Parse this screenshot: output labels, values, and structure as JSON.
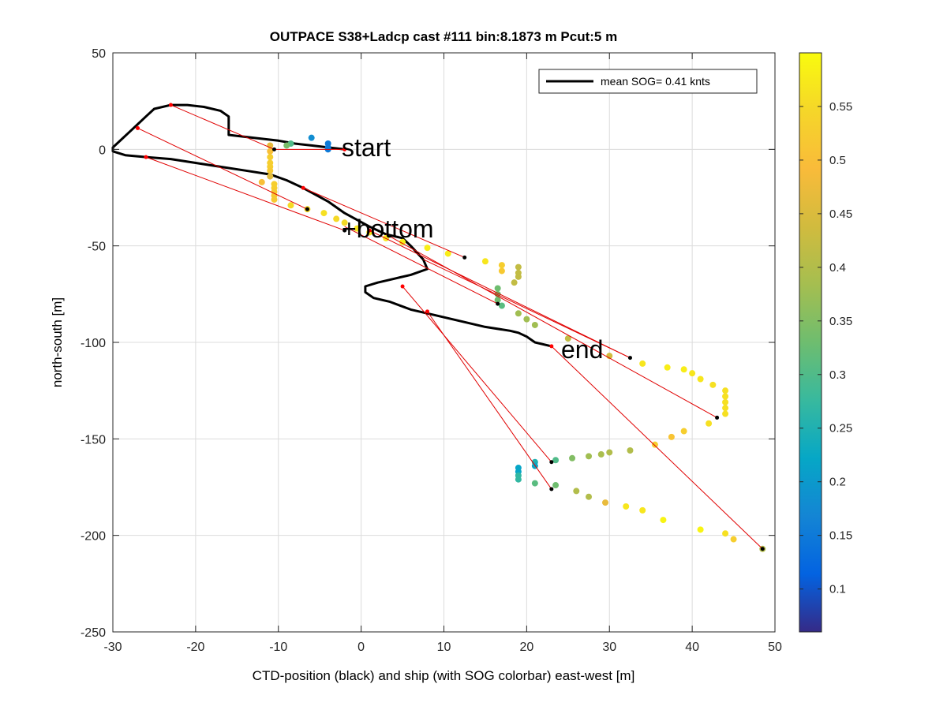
{
  "chart_data": {
    "type": "scatter",
    "title": "OUTPACE S38+Ladcp cast #111 bin:8.1873 m  Pcut:5 m",
    "xlabel": "CTD-position (black) and ship (with SOG colorbar) east-west [m]",
    "ylabel": "north-south [m]",
    "xlim": [
      -30,
      50
    ],
    "ylim": [
      -250,
      50
    ],
    "xticks": [
      -30,
      -20,
      -10,
      0,
      10,
      20,
      30,
      40,
      50
    ],
    "yticks": [
      -250,
      -200,
      -150,
      -100,
      -50,
      0,
      50
    ],
    "grid": true,
    "legend": {
      "placement": "top-right",
      "entry": "mean SOG=  0.41 knts"
    },
    "annotations": [
      {
        "text": "start",
        "x": -2,
        "y": 0
      },
      {
        "text": "+bottom",
        "x": -1.5,
        "y": -42
      },
      {
        "text": "end",
        "x": 24.5,
        "y": -104
      }
    ],
    "colorbar": {
      "range": [
        0.06,
        0.6
      ],
      "ticks": [
        0.1,
        0.15,
        0.2,
        0.25,
        0.3,
        0.35,
        0.4,
        0.45,
        0.5,
        0.55
      ]
    },
    "ctd_track": [
      [
        -2,
        0
      ],
      [
        -4,
        1
      ],
      [
        -6,
        2
      ],
      [
        -8,
        3
      ],
      [
        -10,
        4.5
      ],
      [
        -12,
        5.5
      ],
      [
        -15,
        7
      ],
      [
        -16,
        7.5
      ],
      [
        -16,
        10
      ],
      [
        -16,
        13
      ],
      [
        -16,
        17
      ],
      [
        -17,
        20
      ],
      [
        -19,
        22
      ],
      [
        -21,
        23
      ],
      [
        -23,
        23
      ],
      [
        -25,
        21
      ],
      [
        -26,
        17
      ],
      [
        -27,
        13
      ],
      [
        -28,
        9
      ],
      [
        -29,
        5
      ],
      [
        -30,
        1
      ],
      [
        -30,
        -1
      ],
      [
        -28.5,
        -3
      ],
      [
        -26,
        -4
      ],
      [
        -23,
        -5
      ],
      [
        -20,
        -7
      ],
      [
        -17,
        -9
      ],
      [
        -14,
        -11
      ],
      [
        -11,
        -13
      ],
      [
        -9,
        -16
      ],
      [
        -7,
        -20
      ],
      [
        -4,
        -27
      ],
      [
        -2,
        -33
      ],
      [
        1,
        -40
      ],
      [
        3,
        -44
      ],
      [
        5,
        -46
      ],
      [
        6,
        -50
      ],
      [
        7.5,
        -57
      ],
      [
        8,
        -62
      ],
      [
        6,
        -65
      ],
      [
        4,
        -67
      ],
      [
        2,
        -69
      ],
      [
        0.5,
        -71
      ],
      [
        0.5,
        -74
      ],
      [
        1.5,
        -77
      ],
      [
        3.5,
        -79
      ],
      [
        6,
        -83
      ],
      [
        9,
        -86
      ],
      [
        12,
        -89
      ],
      [
        15,
        -92
      ],
      [
        18,
        -94
      ],
      [
        19,
        -95
      ],
      [
        20,
        -97
      ],
      [
        21,
        -100
      ],
      [
        23,
        -102
      ]
    ],
    "ship_points": [
      {
        "x": -6,
        "y": 6,
        "sog": 0.18
      },
      {
        "x": -4,
        "y": 3,
        "sog": 0.15
      },
      {
        "x": -4,
        "y": 1,
        "sog": 0.15
      },
      {
        "x": -4,
        "y": 0,
        "sog": 0.15
      },
      {
        "x": -8.5,
        "y": 3,
        "sog": 0.3
      },
      {
        "x": -9,
        "y": 2,
        "sog": 0.34
      },
      {
        "x": -11,
        "y": 2,
        "sog": 0.47
      },
      {
        "x": -11,
        "y": -1,
        "sog": 0.5
      },
      {
        "x": -11,
        "y": -4,
        "sog": 0.53
      },
      {
        "x": -11,
        "y": -7,
        "sog": 0.53
      },
      {
        "x": -11,
        "y": -9,
        "sog": 0.53
      },
      {
        "x": -11,
        "y": -11,
        "sog": 0.52
      },
      {
        "x": -11,
        "y": -14,
        "sog": 0.46
      },
      {
        "x": -10.5,
        "y": -18,
        "sog": 0.53
      },
      {
        "x": -10.5,
        "y": -20,
        "sog": 0.53
      },
      {
        "x": -10.5,
        "y": -22,
        "sog": 0.52
      },
      {
        "x": -10.5,
        "y": -24,
        "sog": 0.52
      },
      {
        "x": -10.5,
        "y": -26,
        "sog": 0.52
      },
      {
        "x": -12,
        "y": -17,
        "sog": 0.5
      },
      {
        "x": -8.5,
        "y": -29,
        "sog": 0.55
      },
      {
        "x": -6.5,
        "y": -31,
        "sog": 0.55
      },
      {
        "x": -4.5,
        "y": -33,
        "sog": 0.56
      },
      {
        "x": -3,
        "y": -36,
        "sog": 0.55
      },
      {
        "x": -2,
        "y": -38,
        "sog": 0.55
      },
      {
        "x": -0.5,
        "y": -41,
        "sog": 0.57
      },
      {
        "x": 1,
        "y": -43,
        "sog": 0.57
      },
      {
        "x": 3,
        "y": -46,
        "sog": 0.57
      },
      {
        "x": 5,
        "y": -48,
        "sog": 0.58
      },
      {
        "x": 8,
        "y": -51,
        "sog": 0.58
      },
      {
        "x": 10.5,
        "y": -54,
        "sog": 0.58
      },
      {
        "x": 15,
        "y": -58,
        "sog": 0.57
      },
      {
        "x": 17,
        "y": -60,
        "sog": 0.53
      },
      {
        "x": 17,
        "y": -63,
        "sog": 0.52
      },
      {
        "x": 19,
        "y": -61,
        "sog": 0.42
      },
      {
        "x": 19,
        "y": -64,
        "sog": 0.42
      },
      {
        "x": 19,
        "y": -66,
        "sog": 0.42
      },
      {
        "x": 18.5,
        "y": -69,
        "sog": 0.42
      },
      {
        "x": 16.5,
        "y": -72,
        "sog": 0.33
      },
      {
        "x": 16.5,
        "y": -75,
        "sog": 0.33
      },
      {
        "x": 16.5,
        "y": -78,
        "sog": 0.33
      },
      {
        "x": 17,
        "y": -81,
        "sog": 0.31
      },
      {
        "x": 19,
        "y": -85,
        "sog": 0.38
      },
      {
        "x": 20,
        "y": -88,
        "sog": 0.38
      },
      {
        "x": 21,
        "y": -91,
        "sog": 0.38
      },
      {
        "x": 25,
        "y": -98,
        "sog": 0.42
      },
      {
        "x": 30,
        "y": -107,
        "sog": 0.44
      },
      {
        "x": 34,
        "y": -111,
        "sog": 0.57
      },
      {
        "x": 37,
        "y": -113,
        "sog": 0.58
      },
      {
        "x": 39,
        "y": -114,
        "sog": 0.58
      },
      {
        "x": 40,
        "y": -116,
        "sog": 0.57
      },
      {
        "x": 41,
        "y": -119,
        "sog": 0.57
      },
      {
        "x": 42.5,
        "y": -122,
        "sog": 0.56
      },
      {
        "x": 44,
        "y": -125,
        "sog": 0.56
      },
      {
        "x": 44,
        "y": -128,
        "sog": 0.56
      },
      {
        "x": 44,
        "y": -131,
        "sog": 0.56
      },
      {
        "x": 44,
        "y": -134,
        "sog": 0.56
      },
      {
        "x": 44,
        "y": -137,
        "sog": 0.56
      },
      {
        "x": 42,
        "y": -142,
        "sog": 0.56
      },
      {
        "x": 39,
        "y": -146,
        "sog": 0.53
      },
      {
        "x": 37.5,
        "y": -149,
        "sog": 0.51
      },
      {
        "x": 35.5,
        "y": -153,
        "sog": 0.53
      },
      {
        "x": 32.5,
        "y": -156,
        "sog": 0.4
      },
      {
        "x": 30,
        "y": -157,
        "sog": 0.4
      },
      {
        "x": 29,
        "y": -158,
        "sog": 0.39
      },
      {
        "x": 27.5,
        "y": -159,
        "sog": 0.38
      },
      {
        "x": 25.5,
        "y": -160,
        "sog": 0.35
      },
      {
        "x": 23.5,
        "y": -161,
        "sog": 0.3
      },
      {
        "x": 21,
        "y": -162,
        "sog": 0.25
      },
      {
        "x": 21,
        "y": -164,
        "sog": 0.22
      },
      {
        "x": 19,
        "y": -165,
        "sog": 0.22
      },
      {
        "x": 19,
        "y": -167,
        "sog": 0.22
      },
      {
        "x": 19,
        "y": -169,
        "sog": 0.27
      },
      {
        "x": 19,
        "y": -171,
        "sog": 0.27
      },
      {
        "x": 21,
        "y": -173,
        "sog": 0.31
      },
      {
        "x": 23.5,
        "y": -174,
        "sog": 0.33
      },
      {
        "x": 26,
        "y": -177,
        "sog": 0.4
      },
      {
        "x": 27.5,
        "y": -180,
        "sog": 0.4
      },
      {
        "x": 29.5,
        "y": -183,
        "sog": 0.47
      },
      {
        "x": 32,
        "y": -185,
        "sog": 0.57
      },
      {
        "x": 34,
        "y": -187,
        "sog": 0.57
      },
      {
        "x": 36.5,
        "y": -192,
        "sog": 0.59
      },
      {
        "x": 41,
        "y": -197,
        "sog": 0.59
      },
      {
        "x": 44,
        "y": -199,
        "sog": 0.56
      },
      {
        "x": 45,
        "y": -202,
        "sog": 0.53
      },
      {
        "x": 48.5,
        "y": -207,
        "sog": 0.4
      }
    ],
    "red_connectors": [
      [
        -2,
        0,
        -10.5,
        0
      ],
      [
        -23,
        23,
        -10.5,
        0
      ],
      [
        -27,
        11,
        -6.5,
        -31
      ],
      [
        -26,
        -4,
        -2,
        -42
      ],
      [
        -7,
        -20,
        12.5,
        -56
      ],
      [
        -2,
        -40,
        16.5,
        -80
      ],
      [
        1,
        -42,
        32.5,
        -108
      ],
      [
        3,
        -44,
        43,
        -139
      ],
      [
        7.5,
        -57,
        32.5,
        -108
      ],
      [
        5,
        -71,
        23,
        -162
      ],
      [
        8,
        -84,
        23,
        -176
      ],
      [
        23,
        -102,
        48.5,
        -207
      ]
    ],
    "black_marks": [
      [
        -10.5,
        0
      ],
      [
        -6.5,
        -31
      ],
      [
        -2,
        -42
      ],
      [
        12.5,
        -56
      ],
      [
        16.5,
        -80
      ],
      [
        32.5,
        -108
      ],
      [
        43,
        -139
      ],
      [
        23,
        -162
      ],
      [
        23,
        -176
      ],
      [
        48.5,
        -207
      ]
    ],
    "red_marks": [
      [
        -2,
        0
      ],
      [
        -23,
        23
      ],
      [
        -27,
        11
      ],
      [
        -26,
        -4
      ],
      [
        -7,
        -20
      ],
      [
        1,
        -42
      ],
      [
        5,
        -71
      ],
      [
        8,
        -84
      ],
      [
        23,
        -102
      ]
    ]
  }
}
